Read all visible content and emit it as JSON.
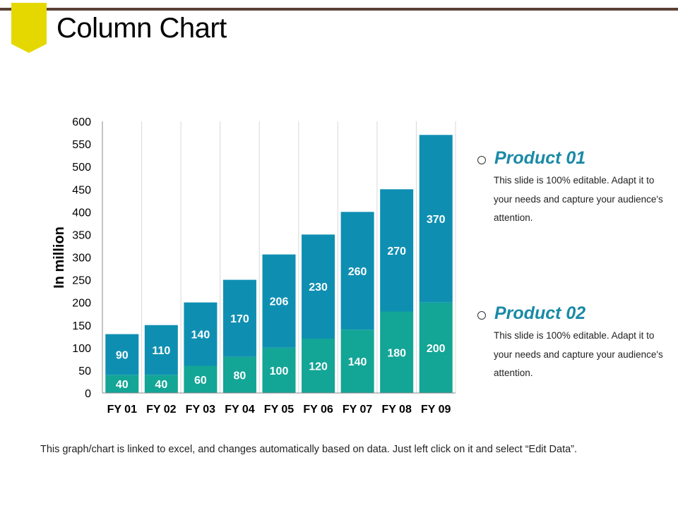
{
  "slide": {
    "title": "Column Chart",
    "footnote": "This graph/chart is linked to excel, and changes automatically based on data. Just left click on it and select “Edit Data”."
  },
  "legend": [
    {
      "name": "Product 01",
      "description": "This slide is 100% editable. Adapt it to your needs and capture your audience's attention."
    },
    {
      "name": "Product 02",
      "description": "This slide is 100% editable. Adapt it to your needs and capture your audience's attention."
    }
  ],
  "chart_data": {
    "type": "bar",
    "stacked": true,
    "categories": [
      "FY 01",
      "FY 02",
      "FY 03",
      "FY 04",
      "FY 05",
      "FY 06",
      "FY 07",
      "FY 08",
      "FY 09"
    ],
    "series": [
      {
        "name": "Product 02",
        "color": "#13a596",
        "values": [
          40,
          40,
          60,
          80,
          100,
          120,
          140,
          180,
          200
        ]
      },
      {
        "name": "Product 01",
        "color": "#0e8fb2",
        "values": [
          90,
          110,
          140,
          170,
          206,
          230,
          260,
          270,
          370
        ]
      }
    ],
    "ylabel": "In million",
    "ylim": [
      0,
      600
    ],
    "yticks": [
      0,
      50,
      100,
      150,
      200,
      250,
      300,
      350,
      400,
      450,
      500,
      550,
      600
    ],
    "grid": "vertical",
    "legend_placement": "right"
  }
}
